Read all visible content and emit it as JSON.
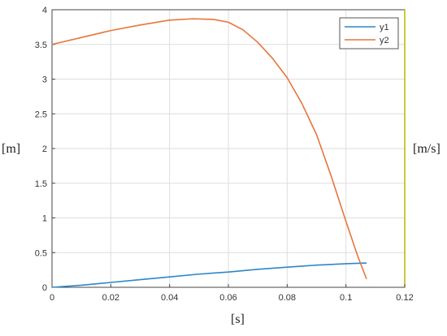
{
  "chart_data": {
    "type": "line",
    "xlabel": "[s]",
    "ylabel_left": "[m]",
    "ylabel_right": "[m/s]",
    "xlim": [
      0,
      0.12
    ],
    "ylim": [
      0,
      4
    ],
    "x_ticks": [
      "0",
      "0.02",
      "0.04",
      "0.06",
      "0.08",
      "0.1",
      "0.12"
    ],
    "y_ticks": [
      "0",
      "0.5",
      "1",
      "1.5",
      "2",
      "2.5",
      "3",
      "3.5",
      "4"
    ],
    "grid": true,
    "legend_position": "top-right",
    "series": [
      {
        "name": "y1",
        "color": "#2e86c8",
        "x": [
          0,
          0.01,
          0.02,
          0.03,
          0.04,
          0.05,
          0.06,
          0.07,
          0.08,
          0.09,
          0.1,
          0.107
        ],
        "y": [
          0,
          0.03,
          0.07,
          0.11,
          0.15,
          0.19,
          0.22,
          0.26,
          0.29,
          0.32,
          0.34,
          0.35
        ]
      },
      {
        "name": "y2",
        "color": "#e8753a",
        "x": [
          0,
          0.01,
          0.02,
          0.03,
          0.04,
          0.048,
          0.055,
          0.06,
          0.065,
          0.07,
          0.075,
          0.08,
          0.085,
          0.09,
          0.095,
          0.1,
          0.104,
          0.107
        ],
        "y": [
          3.5,
          3.6,
          3.7,
          3.78,
          3.85,
          3.87,
          3.86,
          3.82,
          3.71,
          3.53,
          3.3,
          3.02,
          2.65,
          2.2,
          1.6,
          0.95,
          0.45,
          0.12
        ]
      }
    ]
  }
}
